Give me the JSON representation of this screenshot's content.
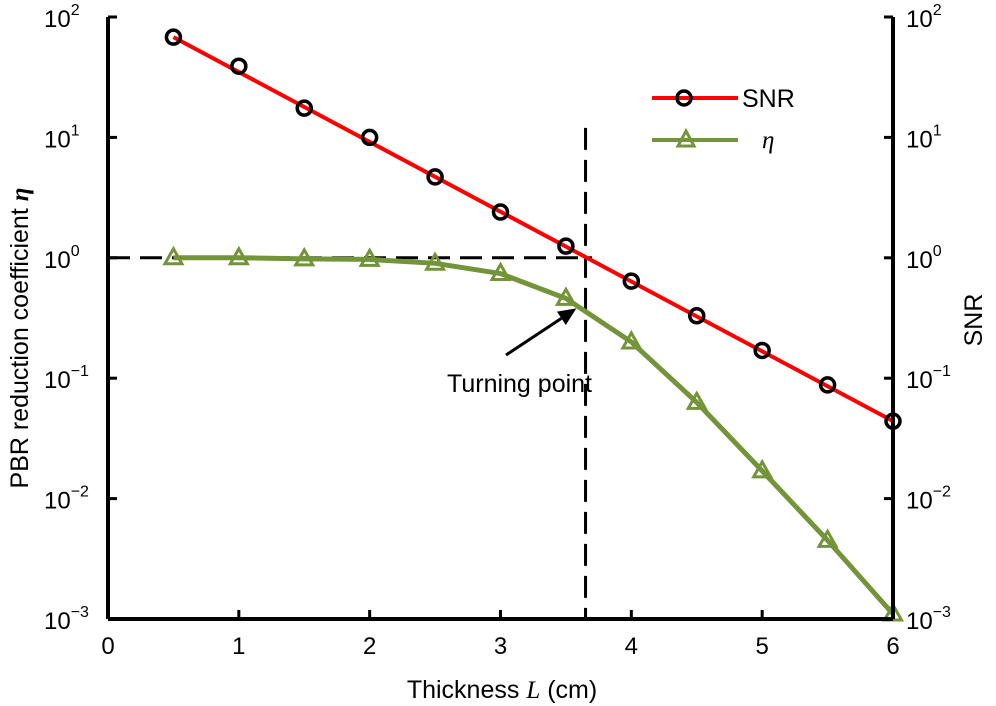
{
  "chart_data": {
    "type": "line",
    "x": [
      0.5,
      1,
      1.5,
      2,
      2.5,
      3,
      3.5,
      4,
      4.5,
      5,
      5.5,
      6
    ],
    "xlabel": {
      "text": "Thickness",
      "var": "L",
      "unit": "(cm)"
    },
    "xlim": [
      0,
      6
    ],
    "xticks": [
      "0",
      "1",
      "2",
      "3",
      "4",
      "5",
      "6"
    ],
    "ylabel_left": {
      "text": "PBR reduction coefficient",
      "var": "η"
    },
    "ylabel_right": "SNR",
    "ylim": [
      0.001,
      100
    ],
    "yscale": "log",
    "yticks": [
      {
        "base": "10",
        "exp": "2"
      },
      {
        "base": "10",
        "exp": "1"
      },
      {
        "base": "10",
        "exp": "0"
      },
      {
        "base": "10",
        "exp": "−1"
      },
      {
        "base": "10",
        "exp": "−2"
      },
      {
        "base": "10",
        "exp": "−3"
      }
    ],
    "grid": false,
    "legend_position": "top-right",
    "series": [
      {
        "name": "SNR",
        "color": "#ff0000",
        "marker": "circle",
        "marker_color": "#000000",
        "fit_line": {
          "x": [
            0.5,
            6
          ],
          "y": [
            68,
            0.044
          ]
        },
        "values": [
          68,
          39,
          17.5,
          10,
          4.7,
          2.4,
          1.25,
          0.64,
          0.33,
          0.17,
          0.088,
          0.044
        ]
      },
      {
        "name": "η",
        "color": "#739438",
        "marker": "triangle",
        "values": [
          1.0,
          1.0,
          0.98,
          0.97,
          0.9,
          0.74,
          0.46,
          0.2,
          0.063,
          0.017,
          0.0045,
          0.0011
        ]
      }
    ],
    "reference_lines": [
      {
        "orientation": "horizontal",
        "y": 1,
        "x_range": [
          0,
          3.7
        ],
        "style": "dashed"
      },
      {
        "orientation": "vertical",
        "x": 3.65,
        "y_range": [
          0.001,
          12
        ],
        "style": "dashed"
      }
    ],
    "annotation": {
      "text": "Turning point",
      "x": 3.05,
      "y": 0.11,
      "arrow_to": [
        3.58,
        0.38
      ]
    }
  }
}
